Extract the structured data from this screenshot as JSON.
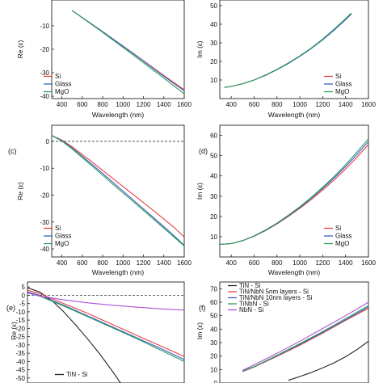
{
  "chart_data": [
    {
      "id": "a",
      "panel_label": "",
      "type": "line",
      "xlabel": "Wavelength (nm)",
      "ylabel": "Re (ε)",
      "xlim": [
        300,
        1600
      ],
      "ylim": [
        -41,
        1
      ],
      "xticks": [
        400,
        600,
        800,
        1000,
        1200,
        1400,
        1600
      ],
      "yticks": [
        -10,
        -20,
        -30,
        -40
      ],
      "zero_line": false,
      "legend_position": "bottom-left",
      "series": [
        {
          "name": "Si",
          "color": "#e8423f",
          "x": [
            500,
            800,
            1100,
            1400,
            1600
          ],
          "y": [
            -3.5,
            -12.5,
            -21.7,
            -31.2,
            -37.2
          ]
        },
        {
          "name": "Glass",
          "color": "#3a5fc8",
          "x": [
            500,
            800,
            1100,
            1400,
            1600
          ],
          "y": [
            -3.5,
            -12.5,
            -21.8,
            -31.5,
            -37.7
          ]
        },
        {
          "name": "MgO",
          "color": "#2e9e57",
          "x": [
            500,
            800,
            1100,
            1400,
            1600
          ],
          "y": [
            -3.5,
            -12.8,
            -22.4,
            -32.3,
            -39.0
          ]
        }
      ]
    },
    {
      "id": "b",
      "panel_label": "",
      "type": "line",
      "xlabel": "Wavelength (nm)",
      "ylabel": "Im (ε)",
      "xlim": [
        300,
        1600
      ],
      "ylim": [
        0,
        53
      ],
      "xticks": [
        400,
        600,
        800,
        1000,
        1200,
        1400,
        1600
      ],
      "yticks": [
        10,
        20,
        30,
        40,
        50
      ],
      "zero_line": false,
      "legend_position": "bottom-right",
      "series": [
        {
          "name": "Si",
          "color": "#e8423f",
          "x": [
            340,
            400,
            500,
            600,
            700,
            800,
            900,
            1000,
            1100,
            1200,
            1300,
            1400,
            1450
          ],
          "y": [
            6.0,
            6.5,
            8.0,
            10.0,
            12.6,
            15.6,
            19.0,
            22.8,
            27.0,
            31.8,
            37.0,
            42.6,
            45.7
          ]
        },
        {
          "name": "Glass",
          "color": "#3a5fc8",
          "x": [
            340,
            400,
            500,
            600,
            700,
            800,
            900,
            1000,
            1100,
            1200,
            1300,
            1400,
            1450
          ],
          "y": [
            6.0,
            6.5,
            8.0,
            10.0,
            12.5,
            15.5,
            18.9,
            22.7,
            26.9,
            31.6,
            36.8,
            42.4,
            45.4
          ]
        },
        {
          "name": "MgO",
          "color": "#2e9e57",
          "x": [
            340,
            400,
            500,
            600,
            700,
            800,
            900,
            1000,
            1100,
            1200,
            1300,
            1400,
            1450
          ],
          "y": [
            6.0,
            6.5,
            8.0,
            10.0,
            12.7,
            15.7,
            19.2,
            23.0,
            27.2,
            32.0,
            37.3,
            43.0,
            46.0
          ]
        }
      ]
    },
    {
      "id": "c",
      "panel_label": "(c)",
      "type": "line",
      "xlabel": "Wavelength (nm)",
      "ylabel": "Re (ε)",
      "xlim": [
        300,
        1600
      ],
      "ylim": [
        -43,
        6
      ],
      "xticks": [
        400,
        600,
        800,
        1000,
        1200,
        1400,
        1600
      ],
      "yticks": [
        0,
        -10,
        -20,
        -30,
        -40
      ],
      "zero_line": true,
      "legend_position": "bottom-left",
      "series": [
        {
          "name": "Si",
          "color": "#e8423f",
          "x": [
            300,
            400,
            500,
            700,
            900,
            1100,
            1300,
            1500,
            1600
          ],
          "y": [
            2.2,
            0.5,
            -2.0,
            -7.8,
            -13.8,
            -19.8,
            -25.8,
            -32.0,
            -35.6
          ]
        },
        {
          "name": "Glass",
          "color": "#3a5fc8",
          "x": [
            300,
            400,
            500,
            700,
            900,
            1100,
            1300,
            1500,
            1600
          ],
          "y": [
            2.2,
            0.3,
            -2.4,
            -8.7,
            -15.2,
            -21.8,
            -28.4,
            -35.1,
            -38.7
          ]
        },
        {
          "name": "MgO",
          "color": "#2e9e57",
          "x": [
            300,
            400,
            500,
            700,
            900,
            1100,
            1300,
            1500,
            1600
          ],
          "y": [
            2.2,
            0.1,
            -2.8,
            -9.3,
            -15.9,
            -22.4,
            -29.0,
            -35.6,
            -38.9
          ]
        }
      ]
    },
    {
      "id": "d",
      "panel_label": "(d)",
      "type": "line",
      "xlabel": "Wavelength (nm)",
      "ylabel": "Im (ε)",
      "xlim": [
        300,
        1600
      ],
      "ylim": [
        0,
        65
      ],
      "xticks": [
        400,
        600,
        800,
        1000,
        1200,
        1400,
        1600
      ],
      "yticks": [
        10,
        20,
        30,
        40,
        50,
        60
      ],
      "zero_line": false,
      "legend_position": "bottom-right",
      "series": [
        {
          "name": "Si",
          "color": "#e8423f",
          "x": [
            300,
            400,
            500,
            600,
            700,
            800,
            900,
            1000,
            1100,
            1200,
            1300,
            1400,
            1500,
            1600
          ],
          "y": [
            6.2,
            6.6,
            8.0,
            10.2,
            13.0,
            16.3,
            20.0,
            24.0,
            28.3,
            33.0,
            38.0,
            43.4,
            49.2,
            55.5
          ]
        },
        {
          "name": "Glass",
          "color": "#3a5fc8",
          "x": [
            300,
            400,
            500,
            600,
            700,
            800,
            900,
            1000,
            1100,
            1200,
            1300,
            1400,
            1500,
            1600
          ],
          "y": [
            6.2,
            6.6,
            8.0,
            10.3,
            13.1,
            16.5,
            20.3,
            24.4,
            28.9,
            33.8,
            39.0,
            44.6,
            50.6,
            57.0
          ]
        },
        {
          "name": "MgO",
          "color": "#2e9e57",
          "x": [
            300,
            400,
            500,
            600,
            700,
            800,
            900,
            1000,
            1100,
            1200,
            1300,
            1400,
            1500,
            1600
          ],
          "y": [
            6.2,
            6.6,
            8.1,
            10.4,
            13.3,
            16.7,
            20.6,
            24.8,
            29.4,
            34.4,
            39.7,
            45.5,
            51.8,
            58.3
          ]
        }
      ]
    },
    {
      "id": "e",
      "panel_label": "(e)",
      "type": "line",
      "xlabel": "",
      "ylabel": "Re (ε)",
      "xlim": [
        300,
        1600
      ],
      "ylim": [
        -53,
        8
      ],
      "xticks": [],
      "yticks": [
        5,
        0,
        -5,
        -10,
        -15,
        -20,
        -25,
        -30,
        -35,
        -40,
        -45,
        -50
      ],
      "zero_line": true,
      "legend_position": "bottom-left",
      "series": [
        {
          "name": "TiN - Si",
          "color": "#222222",
          "x": [
            300,
            400,
            500,
            600,
            700,
            800,
            900,
            1000,
            1100
          ],
          "y": [
            4.5,
            2.0,
            -3.0,
            -10.0,
            -18.0,
            -26.5,
            -35.5,
            -45.5,
            -56.0
          ]
        },
        {
          "name": "",
          "color": "#e8423f",
          "x": [
            300,
            400,
            600,
            800,
            1000,
            1200,
            1400,
            1600
          ],
          "y": [
            3.0,
            1.0,
            -5.0,
            -11.0,
            -17.5,
            -24.0,
            -30.5,
            -37.0
          ]
        },
        {
          "name": "",
          "color": "#3a5fc8",
          "x": [
            300,
            400,
            600,
            800,
            1000,
            1200,
            1400,
            1600
          ],
          "y": [
            2.0,
            0.0,
            -6.0,
            -12.5,
            -19.0,
            -25.5,
            -32.0,
            -38.8
          ]
        },
        {
          "name": "",
          "color": "#2e9e57",
          "x": [
            300,
            400,
            600,
            800,
            1000,
            1200,
            1400,
            1600
          ],
          "y": [
            1.5,
            -0.5,
            -6.5,
            -13.0,
            -19.5,
            -26.0,
            -33.0,
            -40.0
          ]
        },
        {
          "name": "",
          "color": "#b04fd6",
          "x": [
            300,
            400,
            600,
            800,
            1000,
            1200,
            1400,
            1600
          ],
          "y": [
            1.5,
            -0.5,
            -2.8,
            -4.6,
            -6.0,
            -7.2,
            -8.2,
            -9.0
          ]
        }
      ]
    },
    {
      "id": "f",
      "panel_label": "(f)",
      "type": "line",
      "xlabel": "",
      "ylabel": "Im (ε)",
      "xlim": [
        300,
        1600
      ],
      "ylim": [
        0,
        75
      ],
      "xticks": [],
      "yticks": [
        0,
        10,
        20,
        30,
        40,
        50,
        60,
        70
      ],
      "zero_line": false,
      "legend_position": "top-left",
      "series": [
        {
          "name": "TiN - Si",
          "color": "#222222",
          "x": [
            900,
            1000,
            1100,
            1200,
            1300,
            1400,
            1500,
            1600
          ],
          "y": [
            2.0,
            4.8,
            7.8,
            11.2,
            15.0,
            19.5,
            24.8,
            31.0
          ]
        },
        {
          "name": "TiN/NbN 5nm layers - Si",
          "color": "#e8423f",
          "x": [
            500,
            600,
            800,
            1000,
            1200,
            1400,
            1600
          ],
          "y": [
            8.5,
            11.8,
            19.8,
            28.0,
            37.0,
            46.5,
            55.5
          ]
        },
        {
          "name": "TiN/NbN 10nm layers - Si",
          "color": "#3a5fc8",
          "x": [
            500,
            600,
            800,
            1000,
            1200,
            1400,
            1600
          ],
          "y": [
            8.7,
            12.0,
            20.2,
            28.6,
            37.6,
            47.0,
            56.5
          ]
        },
        {
          "name": "TiNbN - Si",
          "color": "#2e9e57",
          "x": [
            500,
            600,
            800,
            1000,
            1200,
            1400,
            1600
          ],
          "y": [
            8.9,
            12.2,
            20.6,
            29.2,
            38.3,
            47.8,
            57.5
          ]
        },
        {
          "name": "NbN - Si",
          "color": "#b04fd6",
          "x": [
            500,
            600,
            800,
            1000,
            1200,
            1400,
            1600
          ],
          "y": [
            9.5,
            13.5,
            22.0,
            31.0,
            40.5,
            50.0,
            60.0
          ]
        }
      ]
    }
  ]
}
